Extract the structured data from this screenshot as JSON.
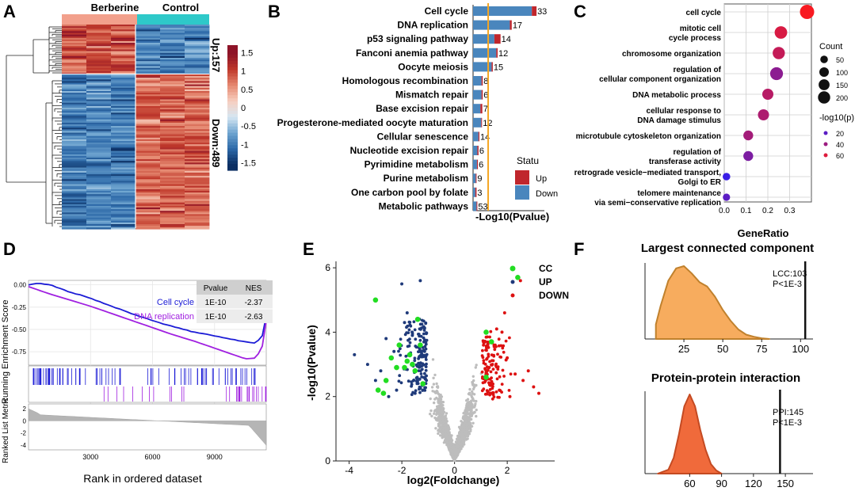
{
  "panels": {
    "a": {
      "letter": "A",
      "col_labels": [
        "Berberine",
        "Control"
      ],
      "up_label": "Up:157",
      "down_label": "Down:489",
      "legend_ticks": [
        "1.5",
        "1",
        "0.5",
        "0",
        "-0.5",
        "-1",
        "-1.5"
      ],
      "colors": {
        "berberine_bar": "#f2a08c",
        "control_bar": "#2ec9c9",
        "high": "#8e1428",
        "low": "#0c2f63"
      }
    },
    "b": {
      "letter": "B",
      "legend_title": "Statu",
      "legend_up": "Up",
      "legend_down": "Down",
      "colors": {
        "up": "#c0262c",
        "down": "#4a86bd",
        "threshold": "#f5a623"
      }
    },
    "c": {
      "letter": "C",
      "count_title": "Count",
      "count_values": [
        "50",
        "100",
        "150",
        "200"
      ],
      "pval_title": "-log10(p)",
      "pval_values": [
        "20",
        "40",
        "60"
      ]
    },
    "d": {
      "letter": "D",
      "table_headers": [
        "Pvalue",
        "NES"
      ],
      "table_rows": [
        {
          "name": "Cell cycle",
          "pvalue": "1E-10",
          "nes": "-2.37",
          "color": "#1c1cd6"
        },
        {
          "name": "DNA replication",
          "pvalue": "1E-10",
          "nes": "-2.63",
          "color": "#a020e0"
        }
      ]
    },
    "e": {
      "letter": "E",
      "legend": [
        {
          "label": "CC",
          "color": "#22dd22"
        },
        {
          "label": "UP",
          "color": "#1f3a7a"
        },
        {
          "label": "DOWN",
          "color": "#dd1111"
        }
      ]
    },
    "f": {
      "letter": "F",
      "top_title": "Largest connected component",
      "top_annot_1": "LCC:103",
      "top_annot_2": "P<1E-3",
      "bottom_title": "Protein-protein interaction",
      "bottom_annot_1": "PPI:145",
      "bottom_annot_2": "P<1E-3"
    }
  },
  "chart_data": [
    {
      "id": "a",
      "type": "heatmap",
      "title": "",
      "groups": [
        "Berberine",
        "Control"
      ],
      "samples_per_group": 3,
      "rows_up": 157,
      "rows_down": 489,
      "scale_range": [
        -1.5,
        1.5
      ]
    },
    {
      "id": "b",
      "type": "bar",
      "title": "",
      "xlabel": "-Log10(Pvalue)",
      "categories": [
        "Cell cycle",
        "DNA replication",
        "p53 signaling pathway",
        "Fanconi anemia pathway",
        "Oocyte meiosis",
        "Homologous recombination",
        "Mismatch repair",
        "Base excision repair",
        "Progesterone-mediated oocyte maturation",
        "Cellular senescence",
        "Nucleotide excision repair",
        "Pyrimidine metabolism",
        "Purine metabolism",
        "One carbon pool by folate",
        "Metabolic pathways"
      ],
      "labels": [
        "33",
        "17",
        "14",
        "12",
        "15",
        "8",
        "6",
        "7",
        "12",
        "14",
        "6",
        "6",
        "9",
        "3",
        "53"
      ],
      "series": [
        {
          "name": "Down",
          "values": [
            15.2,
            9.5,
            5.5,
            6.0,
            4.8,
            2.2,
            2.2,
            1.9,
            2.1,
            1.4,
            1.1,
            1.0,
            0.7,
            0.6,
            0.9
          ]
        },
        {
          "name": "Up",
          "values": [
            1.2,
            0.5,
            1.6,
            0.35,
            0.3,
            0.3,
            0.3,
            0.5,
            0.2,
            0.25,
            0.3,
            0.25,
            0.2,
            0.3,
            0.2
          ]
        }
      ],
      "threshold": 1.3,
      "xlim": [
        0,
        17
      ]
    },
    {
      "id": "c",
      "type": "scatter",
      "title": "",
      "xlabel": "GeneRatio",
      "terms": [
        "cell cycle",
        "mitotic cell cycle process",
        "chromosome organization",
        "regulation of cellular component organization",
        "DNA metabolic process",
        "cellular response to DNA damage stimulus",
        "microtubule cytoskeleton organization",
        "regulation of transferase activity",
        "retrograde vesicle-mediated transport, Golgi to ER",
        "telomere maintenance via semi-conservative replication"
      ],
      "gene_ratio": [
        0.38,
        0.26,
        0.25,
        0.24,
        0.2,
        0.18,
        0.11,
        0.11,
        0.01,
        0.01
      ],
      "count": [
        210,
        150,
        140,
        160,
        110,
        110,
        75,
        75,
        35,
        30
      ],
      "neg_log10_p": [
        68,
        58,
        52,
        35,
        48,
        45,
        42,
        30,
        10,
        20
      ],
      "xticks": [
        "0.0",
        "0.1",
        "0.2",
        "0.3"
      ],
      "xlim": [
        0,
        0.4
      ]
    },
    {
      "id": "d",
      "type": "line",
      "title": "",
      "xlabel": "Rank in ordered dataset",
      "ylabel": "Running Enrichment Score",
      "ylabel2": "Ranked List Metric",
      "xticks": [
        "3000",
        "6000",
        "9000"
      ],
      "yticks": [
        "0.00",
        "-0.25",
        "-0.50",
        "-0.75"
      ],
      "metric_ticks": [
        "2",
        "0",
        "-2",
        "-4"
      ],
      "x": [
        0,
        500,
        1000,
        2000,
        3000,
        4000,
        5000,
        6000,
        7000,
        8000,
        9000,
        10000,
        10500,
        11000,
        11300,
        11500
      ],
      "series": [
        {
          "name": "Cell cycle",
          "values": [
            0.0,
            0.02,
            0.0,
            -0.08,
            -0.15,
            -0.24,
            -0.32,
            -0.4,
            -0.47,
            -0.53,
            -0.57,
            -0.62,
            -0.64,
            -0.65,
            -0.58,
            -0.35
          ]
        },
        {
          "name": "DNA replication",
          "values": [
            -0.02,
            -0.06,
            -0.1,
            -0.17,
            -0.24,
            -0.32,
            -0.4,
            -0.48,
            -0.56,
            -0.63,
            -0.71,
            -0.79,
            -0.83,
            -0.82,
            -0.7,
            -0.4
          ]
        }
      ],
      "xlim": [
        0,
        11500
      ],
      "ylim": [
        -0.9,
        0.05
      ]
    },
    {
      "id": "e",
      "type": "scatter",
      "title": "",
      "xlabel": "log2(Foldchange)",
      "ylabel": "-log10(Pvalue)",
      "xticks": [
        "-4",
        "-2",
        "0",
        "2"
      ],
      "yticks": [
        "0",
        "2",
        "4",
        "6"
      ],
      "xlim": [
        -4.5,
        3.8
      ],
      "ylim": [
        0,
        6.2
      ],
      "series": [
        {
          "name": "CC",
          "points": [
            [
              -3.0,
              5.0
            ],
            [
              -2.9,
              2.2
            ],
            [
              -2.6,
              2.5
            ],
            [
              -2.4,
              3.2
            ],
            [
              -2.1,
              3.6
            ],
            [
              -1.9,
              2.9
            ],
            [
              -1.7,
              3.3
            ],
            [
              -1.5,
              2.8
            ],
            [
              -1.4,
              4.4
            ],
            [
              -1.3,
              3.6
            ],
            [
              -1.2,
              2.4
            ],
            [
              -2.2,
              2.9
            ],
            [
              -1.8,
              3.1
            ],
            [
              1.2,
              4.0
            ],
            [
              1.2,
              2.6
            ],
            [
              1.4,
              3.7
            ],
            [
              2.4,
              5.7
            ],
            [
              -2.7,
              2.1
            ],
            [
              -1.6,
              3.0
            ]
          ]
        },
        {
          "name": "UP",
          "points": [
            [
              -2.0,
              5.5
            ],
            [
              -1.3,
              5.6
            ],
            [
              -3.3,
              3.0
            ],
            [
              -3.8,
              3.3
            ],
            [
              -2.2,
              2.2
            ],
            [
              -3.0,
              2.5
            ],
            [
              -2.6,
              3.8
            ],
            [
              -1.9,
              4.3
            ],
            [
              -2.5,
              2.0
            ],
            [
              -1.5,
              2.1
            ],
            [
              -1.8,
              4.6
            ],
            [
              -2.8,
              2.8
            ],
            [
              -2.3,
              3.4
            ],
            [
              -1.6,
              3.9
            ]
          ]
        },
        {
          "name": "DOWN",
          "points": [
            [
              1.8,
              4.0
            ],
            [
              2.0,
              3.2
            ],
            [
              2.3,
              2.7
            ],
            [
              2.6,
              2.5
            ],
            [
              3.0,
              2.3
            ],
            [
              3.2,
              2.1
            ],
            [
              1.5,
              3.6
            ],
            [
              1.3,
              2.9
            ],
            [
              1.7,
              2.2
            ],
            [
              2.1,
              2.0
            ],
            [
              2.8,
              2.8
            ],
            [
              1.9,
              4.6
            ],
            [
              2.5,
              5.6
            ],
            [
              1.6,
              4.1
            ]
          ]
        }
      ]
    },
    {
      "id": "f_top",
      "type": "area",
      "title": "Largest connected component",
      "xticks": [
        "25",
        "50",
        "75",
        "100"
      ],
      "x": [
        7,
        10,
        15,
        20,
        25,
        30,
        35,
        40,
        45,
        50,
        55,
        60,
        65,
        70,
        75,
        80
      ],
      "values": [
        0.2,
        0.45,
        0.8,
        0.97,
        1.0,
        0.9,
        0.78,
        0.72,
        0.58,
        0.4,
        0.25,
        0.13,
        0.06,
        0.03,
        0.01,
        0.0
      ],
      "observed": 103,
      "xlim": [
        0,
        108
      ]
    },
    {
      "id": "f_bottom",
      "type": "area",
      "title": "Protein-protein interaction",
      "xticks": [
        "60",
        "90",
        "120",
        "150"
      ],
      "x": [
        30,
        40,
        45,
        50,
        55,
        60,
        65,
        70,
        75,
        80,
        85,
        90
      ],
      "values": [
        0.0,
        0.05,
        0.2,
        0.5,
        0.85,
        1.0,
        0.85,
        0.55,
        0.3,
        0.12,
        0.04,
        0.0
      ],
      "observed": 145,
      "xlim": [
        18,
        176
      ]
    }
  ]
}
